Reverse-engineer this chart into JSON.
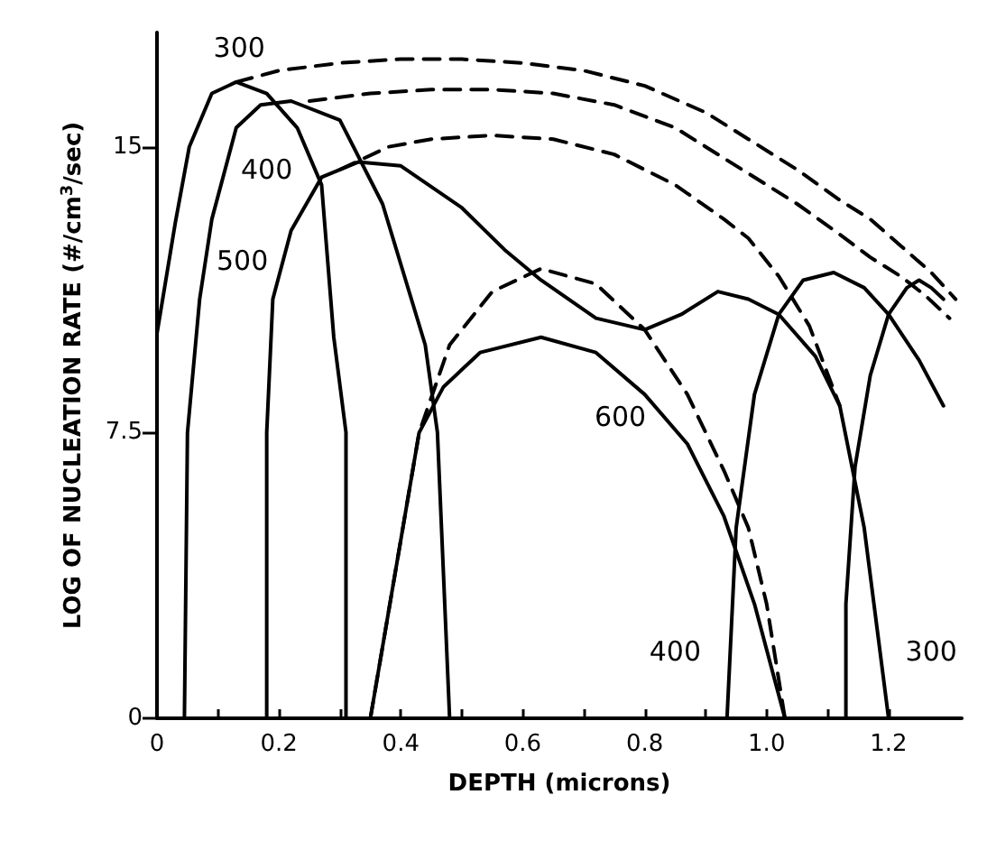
{
  "chart_data": {
    "type": "line",
    "xlabel": "DEPTH (microns)",
    "ylabel": "LOG OF NUCLEATION RATE (#/cm$^{3}$/sec)",
    "xlim": [
      0,
      1.32
    ],
    "ylim": [
      0,
      18
    ],
    "xticks": [
      0,
      {
        "value": 0.1,
        "label": null
      },
      {
        "value": 0.2,
        "label": "0.2"
      },
      {
        "value": 0.3,
        "label": null
      },
      {
        "value": 0.4,
        "label": "0.4"
      },
      {
        "value": 0.5,
        "label": null
      },
      {
        "value": 0.6,
        "label": "0.6"
      },
      {
        "value": 0.7,
        "label": null
      },
      {
        "value": 0.8,
        "label": "0.8"
      },
      {
        "value": 0.9,
        "label": null
      },
      {
        "value": 1.0,
        "label": "1.0"
      },
      {
        "value": 1.1,
        "label": null
      },
      {
        "value": 1.2,
        "label": "1.2"
      }
    ],
    "yticks": [
      0,
      7.5,
      15
    ],
    "grid": false,
    "marker": "none",
    "series": [
      {
        "color": "#000000",
        "line_style": "solid",
        "x": [
          0,
          0.03,
          0.053,
          0.09,
          0.13,
          0.18,
          0.23,
          0.27,
          0.29,
          0.31,
          0.31
        ],
        "values": [
          10.1,
          13,
          15,
          16.4,
          16.7,
          16.4,
          15.5,
          14,
          10,
          7.5,
          0
        ]
      },
      {
        "color": "#000000",
        "line_style": "solid",
        "x": [
          0.045,
          0.05,
          0.07,
          0.09,
          0.13,
          0.17,
          0.22,
          0.3,
          0.37,
          0.44,
          0.46,
          0.48
        ],
        "values": [
          0,
          7.5,
          11,
          13.1,
          15.5,
          16.1,
          16.2,
          15.7,
          13.5,
          9.8,
          7.5,
          0
        ]
      },
      {
        "color": "#000000",
        "line_style": "solid",
        "x": [
          0.18,
          0.18,
          0.19,
          0.22,
          0.27,
          0.33,
          0.4,
          0.5,
          0.57,
          0.63,
          0.72,
          0.8,
          0.86,
          0.92,
          0.97,
          1.02,
          1.08,
          1.12,
          1.16,
          1.2
        ],
        "values": [
          0,
          7.5,
          11,
          12.8,
          14.2,
          14.6,
          14.5,
          13.4,
          12.3,
          11.5,
          10.5,
          10.2,
          10.6,
          11.2,
          11,
          10.6,
          9.5,
          8.2,
          5,
          0
        ]
      },
      {
        "color": "#000000",
        "line_style": "solid",
        "x": [
          0.35,
          0.43,
          0.47,
          0.53,
          0.63,
          0.72,
          0.8,
          0.87,
          0.93,
          0.98,
          1.03
        ],
        "values": [
          0,
          7.5,
          8.7,
          9.6,
          10,
          9.6,
          8.5,
          7.2,
          5.3,
          3,
          0
        ]
      },
      {
        "color": "#000000",
        "line_style": "solid",
        "x": [
          0.935,
          0.95,
          0.98,
          1.02,
          1.06,
          1.11,
          1.16,
          1.2,
          1.25,
          1.29
        ],
        "values": [
          0,
          5,
          8.5,
          10.6,
          11.5,
          11.7,
          11.3,
          10.6,
          9.4,
          8.2
        ]
      },
      {
        "color": "#000000",
        "line_style": "solid",
        "x": [
          1.13,
          1.13,
          1.145,
          1.17,
          1.2,
          1.23,
          1.25,
          1.27,
          1.29
        ],
        "values": [
          0,
          3,
          6.6,
          9,
          10.6,
          11.3,
          11.5,
          11.3,
          11
        ]
      },
      {
        "color": "#000000",
        "line_style": "dashed",
        "x": [
          0.13,
          0.2,
          0.3,
          0.4,
          0.5,
          0.6,
          0.7,
          0.8,
          0.9,
          0.97,
          1.05,
          1.12,
          1.17,
          1.22,
          1.27,
          1.31
        ],
        "values": [
          16.7,
          17,
          17.2,
          17.3,
          17.3,
          17.2,
          17,
          16.6,
          15.9,
          15.2,
          14.4,
          13.6,
          13.1,
          12.4,
          11.7,
          11
        ]
      },
      {
        "color": "#000000",
        "line_style": "dashed",
        "x": [
          0.25,
          0.35,
          0.45,
          0.55,
          0.65,
          0.75,
          0.85,
          0.97,
          1.05,
          1.12,
          1.17,
          1.22,
          1.26,
          1.3
        ],
        "values": [
          16.2,
          16.4,
          16.5,
          16.5,
          16.4,
          16.1,
          15.5,
          14.3,
          13.5,
          12.7,
          12.1,
          11.6,
          11.1,
          10.5
        ]
      },
      {
        "color": "#000000",
        "line_style": "dashed",
        "x": [
          0.3,
          0.38,
          0.45,
          0.55,
          0.65,
          0.75,
          0.85,
          0.93,
          0.97,
          1.02,
          1.07,
          1.12
        ],
        "values": [
          14.4,
          15,
          15.2,
          15.3,
          15.2,
          14.8,
          14,
          13.1,
          12.6,
          11.6,
          10.3,
          8.2
        ]
      },
      {
        "color": "#000000",
        "line_style": "dashed",
        "x": [
          0.35,
          0.43,
          0.48,
          0.55,
          0.63,
          0.72,
          0.8,
          0.87,
          0.93,
          0.97,
          1.0,
          1.03
        ],
        "values": [
          0,
          7.5,
          9.8,
          11.2,
          11.8,
          11.4,
          10.2,
          8.5,
          6.5,
          5,
          3,
          0
        ]
      }
    ],
    "annotations": [
      {
        "text": "300",
        "x": 0.135,
        "y": 17.6
      },
      {
        "text": "400",
        "x": 0.18,
        "y": 14.4
      },
      {
        "text": "500",
        "x": 0.14,
        "y": 12.0
      },
      {
        "text": "600",
        "x": 0.76,
        "y": 7.9
      },
      {
        "text": "400",
        "x": 0.85,
        "y": 1.75
      },
      {
        "text": "300",
        "x": 1.27,
        "y": 1.75
      }
    ]
  }
}
